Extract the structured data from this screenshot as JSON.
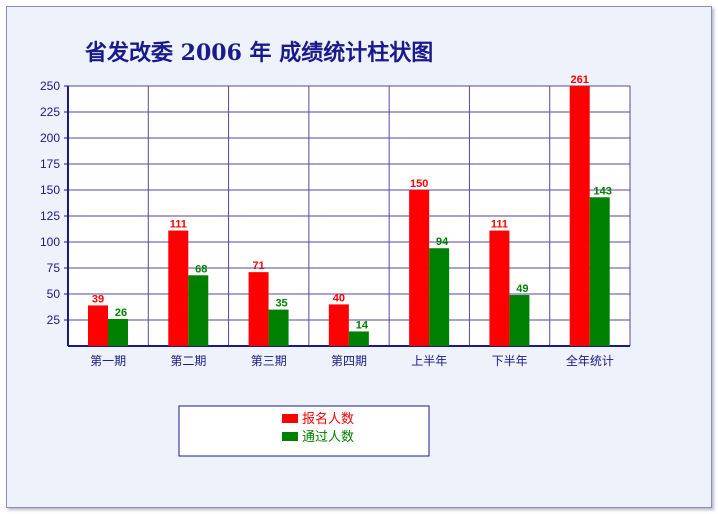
{
  "chart_data": {
    "type": "bar",
    "title": "省发改委 2006 年 成绩统计柱状图",
    "categories": [
      "第一期",
      "第二期",
      "第三期",
      "第四期",
      "上半年",
      "下半年",
      "全年统计"
    ],
    "series": [
      {
        "name": "报名人数",
        "color": "#ff0000",
        "values": [
          39,
          111,
          71,
          40,
          150,
          111,
          261
        ]
      },
      {
        "name": "通过人数",
        "color": "#008000",
        "values": [
          26,
          68,
          35,
          14,
          94,
          49,
          143
        ]
      }
    ],
    "ylim": [
      0,
      250
    ],
    "yticks": [
      25,
      50,
      75,
      100,
      125,
      150,
      175,
      200,
      225,
      250
    ],
    "grid": true,
    "legend": "bottom-center"
  }
}
